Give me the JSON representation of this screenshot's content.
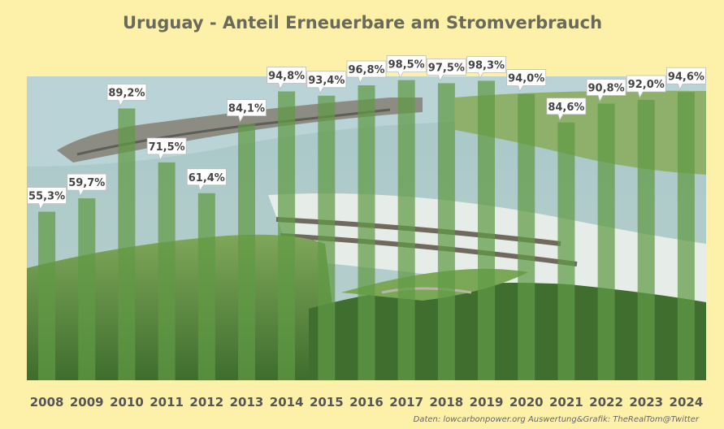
{
  "chart_data": {
    "type": "bar",
    "title": "Uruguay - Anteil Erneuerbare am Stromverbrauch",
    "categories": [
      "2008",
      "2009",
      "2010",
      "2011",
      "2012",
      "2013",
      "2014",
      "2015",
      "2016",
      "2017",
      "2018",
      "2019",
      "2020",
      "2021",
      "2022",
      "2023",
      "2024"
    ],
    "values": [
      55.3,
      59.7,
      89.2,
      71.5,
      61.4,
      84.1,
      94.8,
      93.4,
      96.8,
      98.5,
      97.5,
      98.3,
      94.0,
      84.6,
      90.8,
      92.0,
      94.6
    ],
    "value_labels": [
      "55,3%",
      "59,7%",
      "89,2%",
      "71,5%",
      "61,4%",
      "84,1%",
      "94,8%",
      "93,4%",
      "96,8%",
      "98,5%",
      "97,5%",
      "98,3%",
      "94,0%",
      "84,6%",
      "90,8%",
      "92,0%",
      "94,6%"
    ],
    "xlabel": "",
    "ylabel": "",
    "ylim": [
      0,
      100
    ],
    "grid": false,
    "legend": "none",
    "bar_color": "#5f9a44",
    "background_color": "#fdf0a8",
    "background_image": "hydroelectric-dam-photo"
  },
  "source_text": "Daten: lowcarbonpower.org  Auswertung&Grafik: TheRealTom@Twitter"
}
